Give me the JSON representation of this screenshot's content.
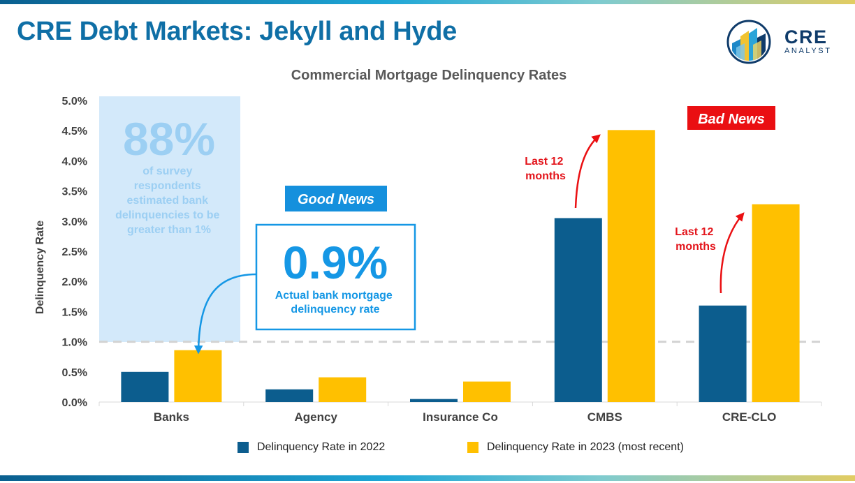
{
  "header": {
    "title": "CRE Debt Markets: Jekyll and Hyde",
    "logo_main": "CRE",
    "logo_sub": "ANALYST"
  },
  "colors": {
    "series_2022": "#0c5d8e",
    "series_2023": "#ffc000",
    "callout_bg": "#d3e9fa",
    "callout_text": "#9ccff3",
    "accent_blue": "#1597e5",
    "bad_news_red": "#ea0f12",
    "good_news_blue": "#1590dd",
    "threshold_line": "#d3d3d3"
  },
  "chart_data": {
    "type": "bar",
    "title": "Commercial Mortgage Delinquency Rates",
    "ylabel": "Delinquency Rate",
    "xlabel": "",
    "categories": [
      "Banks",
      "Agency",
      "Insurance Co",
      "CMBS",
      "CRE-CLO"
    ],
    "series": [
      {
        "name": "Delinquency Rate in 2022",
        "values": [
          0.5,
          0.21,
          0.05,
          3.05,
          1.6
        ]
      },
      {
        "name": "Delinquency Rate in 2023 (most recent)",
        "values": [
          0.86,
          0.41,
          0.34,
          4.51,
          3.28
        ]
      }
    ],
    "ylim": [
      0,
      5
    ],
    "yticks": [
      0,
      0.5,
      1.0,
      1.5,
      2.0,
      2.5,
      3.0,
      3.5,
      4.0,
      4.5,
      5.0
    ],
    "ytick_labels": [
      "0.0%",
      "0.5%",
      "1.0%",
      "1.5%",
      "2.0%",
      "2.5%",
      "3.0%",
      "3.5%",
      "4.0%",
      "4.5%",
      "5.0%"
    ],
    "grid": false,
    "reference_line": 1.0,
    "legend_position": "bottom"
  },
  "annotations": {
    "survey_big": "88%",
    "survey_text": [
      "of survey",
      "respondents",
      "estimated bank",
      "delinquencies to be",
      "greater than 1%"
    ],
    "good_news": "Good News",
    "actual_big": "0.9%",
    "actual_text": [
      "Actual bank mortgage",
      "delinquency rate"
    ],
    "bad_news": "Bad News",
    "cmbs_note": [
      "Last 12",
      "months"
    ],
    "clo_note": [
      "Last 12",
      "months"
    ]
  }
}
